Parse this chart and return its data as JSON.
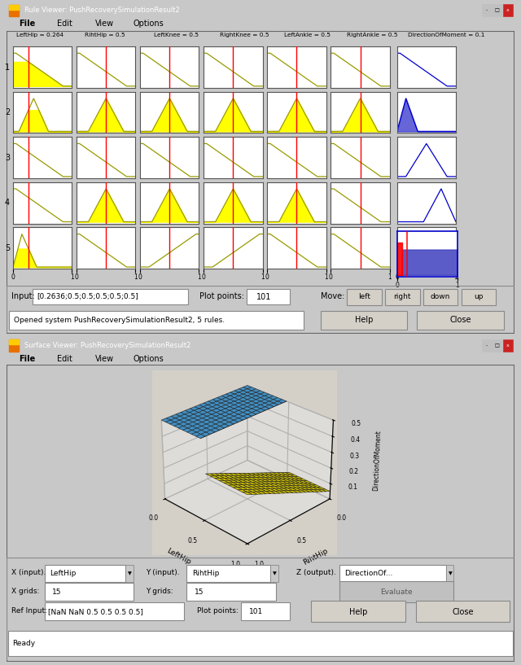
{
  "fig_width": 6.4,
  "fig_height": 8.17,
  "bg_color": "#c8c8c8",
  "panel1": {
    "title": "Rule Viewer: PushRecoverySimulationResult2",
    "title_bar_color": "#3a6ea5",
    "title_text_color": "white",
    "menu_items": [
      "File",
      "Edit",
      "View",
      "Options"
    ],
    "col_labels": [
      "LeftHip = 0.264",
      "RihtHip = 0.5",
      "LeftKnee = 0.5",
      "RightKnee = 0.5",
      "LeftAnkle = 0.5",
      "RightAnkle = 0.5",
      "DirectionOfMoment = 0.1"
    ],
    "input_text": "[0.2636;0.5;0.5;0.5;0.5;0.5]",
    "plot_points": "101",
    "status_text": "Opened system PushRecoverySimulationResult2, 5 rules.",
    "bg_gray": "#d4d0c8",
    "yellow_fill": "#ffff00",
    "red_line_color": "red",
    "dark_yellow_line": "#9a9a00",
    "blue_line": "#0000cc"
  },
  "panel2": {
    "title": "Surface Viewer: PushRecoverySimulationResult2",
    "menu_items": [
      "File",
      "Edit",
      "View",
      "Options"
    ],
    "xlabel": "LeftHip",
    "ylabel": "RihtHip",
    "zlabel": "DirectionOfMoment",
    "blue_color": "#55bbff",
    "yellow_color": "#ffee00",
    "x_input_val": "LeftHip",
    "y_input_val": "RihtHip",
    "z_output_val": "DirectionOf...",
    "x_grids": "15",
    "y_grids": "15",
    "ref_input": "[NaN NaN 0.5 0.5 0.5 0.5]",
    "plot_points": "101",
    "status_text": "Ready",
    "bg_gray": "#d4d0c8"
  }
}
